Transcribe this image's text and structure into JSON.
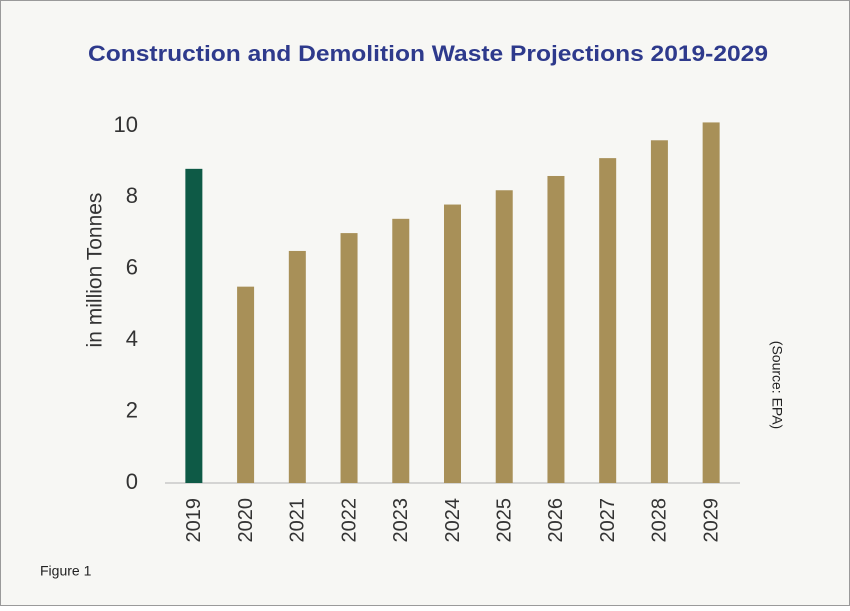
{
  "chart_data": {
    "type": "bar",
    "title": "Construction and Demolition Waste Projections 2019-2029",
    "y_label": "in million Tonnes",
    "source": "(Source: EPA)",
    "figure_label": "Figure 1",
    "categories": [
      "2019",
      "2020",
      "2021",
      "2022",
      "2023",
      "2024",
      "2025",
      "2026",
      "2027",
      "2028",
      "2029"
    ],
    "values": [
      8.8,
      5.5,
      6.5,
      7.0,
      7.4,
      7.8,
      8.2,
      8.6,
      9.1,
      9.6,
      10.1
    ],
    "colors": [
      "#0e5a46",
      "#a89058",
      "#a89058",
      "#a89058",
      "#a89058",
      "#a89058",
      "#a89058",
      "#a89058",
      "#a89058",
      "#a89058",
      "#a89058"
    ],
    "ylim": [
      0,
      10.5
    ],
    "yticks": [
      0,
      2,
      4,
      6,
      8,
      10
    ],
    "grid": false
  }
}
